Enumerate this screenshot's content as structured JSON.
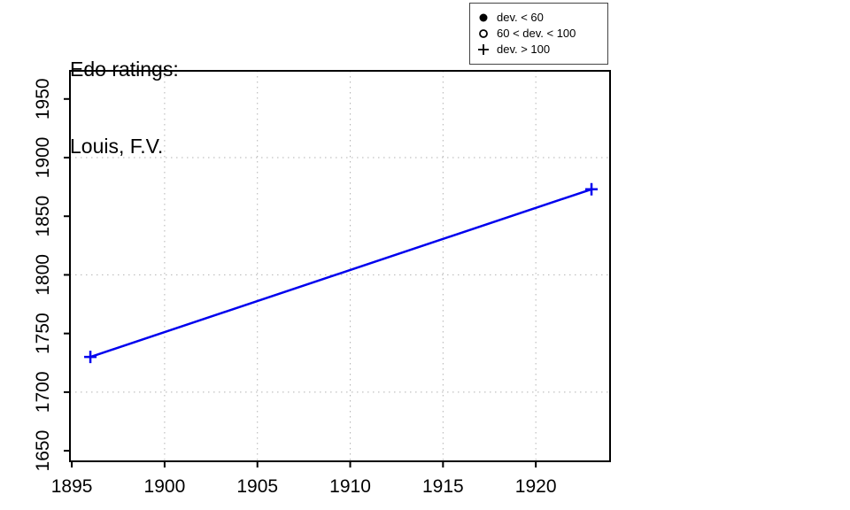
{
  "title": {
    "line1": "Edo ratings:",
    "line2": "Louis, F.V."
  },
  "legend": {
    "position": "top-right",
    "items": [
      {
        "symbol": "filled-circle",
        "label": "dev. < 60"
      },
      {
        "symbol": "open-circle",
        "label": "60 < dev. < 100"
      },
      {
        "symbol": "plus",
        "label": "dev. > 100"
      }
    ]
  },
  "colors": {
    "line": "#0000ee",
    "grid": "#b3b3b3",
    "axis": "#000000",
    "background": "#ffffff"
  },
  "chart_data": {
    "type": "line",
    "title": "Edo ratings: Louis, F.V.",
    "xlabel": "",
    "ylabel": "",
    "xlim": [
      1894.9,
      1924.0
    ],
    "ylim": [
      1641,
      1974
    ],
    "x_ticks": [
      1895,
      1900,
      1905,
      1910,
      1915,
      1920
    ],
    "y_ticks": [
      1650,
      1700,
      1750,
      1800,
      1850,
      1900,
      1950
    ],
    "x_gridlines": [
      1900,
      1905,
      1910,
      1915,
      1920
    ],
    "y_gridlines": [
      1700,
      1800,
      1900
    ],
    "grid_style": "dotted",
    "series": [
      {
        "name": "Edo rating",
        "marker": "plus",
        "points": [
          {
            "x": 1896,
            "y": 1730
          },
          {
            "x": 1923,
            "y": 1873
          }
        ]
      }
    ]
  }
}
